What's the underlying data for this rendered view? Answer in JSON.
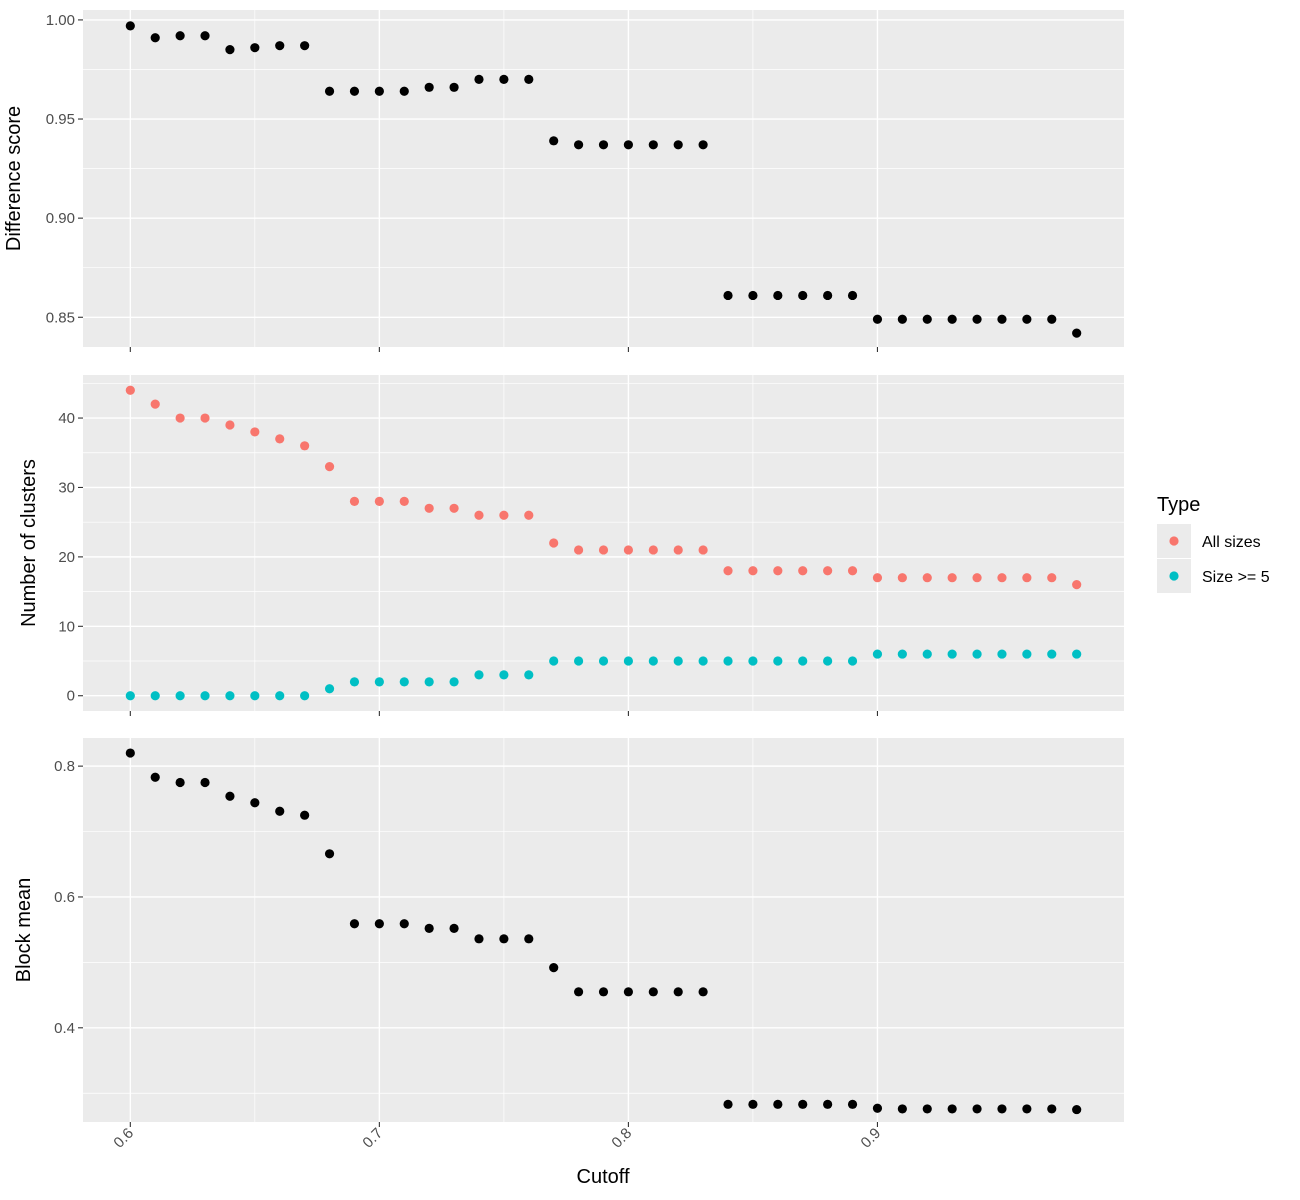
{
  "chart_data": {
    "type": "scatter",
    "xlabel": "Cutoff",
    "x_ticks": [
      0.6,
      0.7,
      0.8,
      0.9
    ],
    "x_tick_labels": [
      "0.6",
      "0.7",
      "0.8",
      "0.9"
    ],
    "xlim": [
      0.581,
      0.999
    ],
    "grid": true,
    "legend_position": "right",
    "legend": {
      "title": "Type",
      "entries": [
        {
          "label": "All sizes",
          "color": "#f8766d"
        },
        {
          "label": "Size >= 5",
          "color": "#00bfc4"
        }
      ]
    },
    "x": [
      0.6,
      0.61,
      0.62,
      0.63,
      0.64,
      0.65,
      0.66,
      0.67,
      0.68,
      0.69,
      0.7,
      0.71,
      0.72,
      0.73,
      0.74,
      0.75,
      0.76,
      0.77,
      0.78,
      0.79,
      0.8,
      0.81,
      0.82,
      0.83,
      0.84,
      0.85,
      0.86,
      0.87,
      0.88,
      0.89,
      0.9,
      0.91,
      0.92,
      0.93,
      0.94,
      0.95,
      0.96,
      0.97,
      0.98
    ],
    "panels": [
      {
        "ylabel": "Difference score",
        "ylim": [
          0.835,
          1.005
        ],
        "y_ticks": [
          0.85,
          0.9,
          0.95,
          1.0
        ],
        "y_tick_labels": [
          "0.85",
          "0.90",
          "0.95",
          "1.00"
        ],
        "series": [
          {
            "color": "#000000",
            "values": [
              0.997,
              0.991,
              0.992,
              0.992,
              0.985,
              0.986,
              0.987,
              0.987,
              0.964,
              0.964,
              0.964,
              0.964,
              0.966,
              0.966,
              0.97,
              0.97,
              0.97,
              0.939,
              0.937,
              0.937,
              0.937,
              0.937,
              0.937,
              0.937,
              0.861,
              0.861,
              0.861,
              0.861,
              0.861,
              0.861,
              0.849,
              0.849,
              0.849,
              0.849,
              0.849,
              0.849,
              0.849,
              0.849,
              0.842
            ]
          }
        ]
      },
      {
        "ylabel": "Number of clusters",
        "ylim": [
          -2.2,
          46.2
        ],
        "y_ticks": [
          0,
          10,
          20,
          30,
          40
        ],
        "y_tick_labels": [
          "0",
          "10",
          "20",
          "30",
          "40"
        ],
        "series": [
          {
            "name": "All sizes",
            "color": "#f8766d",
            "values": [
              44,
              42,
              40,
              40,
              39,
              38,
              37,
              36,
              33,
              28,
              28,
              28,
              27,
              27,
              26,
              26,
              26,
              22,
              21,
              21,
              21,
              21,
              21,
              21,
              18,
              18,
              18,
              18,
              18,
              18,
              17,
              17,
              17,
              17,
              17,
              17,
              17,
              17,
              16
            ]
          },
          {
            "name": "Size >= 5",
            "color": "#00bfc4",
            "values": [
              0,
              0,
              0,
              0,
              0,
              0,
              0,
              0,
              1,
              2,
              2,
              2,
              2,
              2,
              3,
              3,
              3,
              5,
              5,
              5,
              5,
              5,
              5,
              5,
              5,
              5,
              5,
              5,
              5,
              5,
              6,
              6,
              6,
              6,
              6,
              6,
              6,
              6,
              6
            ]
          }
        ]
      },
      {
        "ylabel": "Block mean",
        "ylim": [
          0.256,
          0.843
        ],
        "y_ticks": [
          0.4,
          0.6,
          0.8
        ],
        "y_tick_labels": [
          "0.4",
          "0.6",
          "0.8"
        ],
        "series": [
          {
            "color": "#000000",
            "values": [
              0.82,
              0.783,
              0.775,
              0.775,
              0.754,
              0.744,
              0.731,
              0.725,
              0.666,
              0.559,
              0.559,
              0.559,
              0.552,
              0.552,
              0.536,
              0.536,
              0.536,
              0.492,
              0.455,
              0.455,
              0.455,
              0.455,
              0.455,
              0.455,
              0.283,
              0.283,
              0.283,
              0.283,
              0.283,
              0.283,
              0.277,
              0.276,
              0.276,
              0.276,
              0.276,
              0.276,
              0.276,
              0.276,
              0.275
            ]
          }
        ]
      }
    ]
  }
}
